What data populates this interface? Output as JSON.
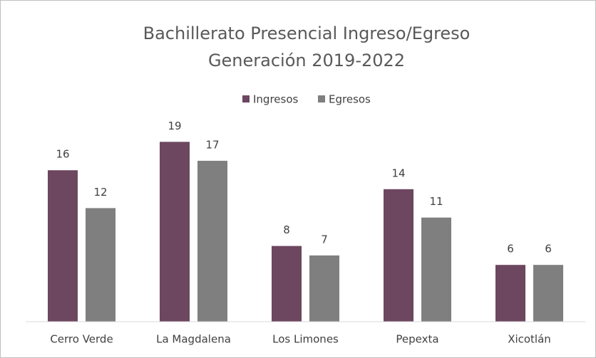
{
  "chart_data": {
    "type": "bar",
    "title": "Bachillerato Presencial  Ingreso/Egreso",
    "subtitle": "Generación  2019-2022",
    "categories": [
      "Cerro Verde",
      "La Magdalena",
      "Los Limones",
      "Pepexta",
      "Xicotlán"
    ],
    "series": [
      {
        "name": "Ingresos",
        "color": "#6d4660",
        "values": [
          16,
          19,
          8,
          14,
          6
        ]
      },
      {
        "name": "Egresos",
        "color": "#7f7f7f",
        "values": [
          12,
          17,
          7,
          11,
          6
        ]
      }
    ],
    "ylim": [
      0,
      20
    ],
    "legend": "top"
  }
}
